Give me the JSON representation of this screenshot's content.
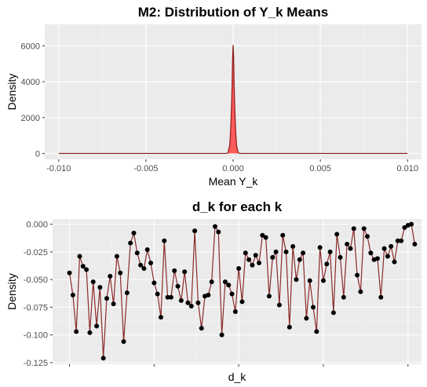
{
  "chart_data": [
    {
      "type": "area",
      "title": "M2: Distribution of Y_k Means",
      "xlabel": "Mean Y_k",
      "ylabel": "Density",
      "xlim": [
        -0.0108,
        0.0108
      ],
      "ylim": [
        -330,
        7200
      ],
      "x_ticks": [
        -0.01,
        -0.005,
        0.0,
        0.005,
        0.01
      ],
      "x_tick_labels": [
        "-0.010",
        "-0.005",
        "0.000",
        "0.005",
        "0.010"
      ],
      "y_ticks": [
        0,
        2000,
        4000,
        6000
      ],
      "y_tick_labels": [
        "0",
        "2000",
        "4000",
        "6000"
      ],
      "x": [
        -0.01,
        -0.0004,
        -0.0003,
        -0.0002,
        -0.00015,
        -0.0001,
        -6e-05,
        -3e-05,
        0.0,
        3e-05,
        6e-05,
        0.0001,
        0.00015,
        0.0002,
        0.0003,
        0.0004,
        0.01
      ],
      "density": [
        0,
        0,
        30,
        420,
        1150,
        2400,
        3800,
        5300,
        6050,
        5300,
        3800,
        2400,
        1150,
        420,
        30,
        0,
        0
      ],
      "colors": {
        "fill": "#ff5c5c",
        "line": "#8b1a1a"
      },
      "grid": true
    },
    {
      "type": "line",
      "title": "d_k for each k",
      "xlabel": "d_k",
      "ylabel": "Density",
      "xlim": [
        -4,
        105
      ],
      "ylim": [
        -0.1265,
        0.0047
      ],
      "x_ticks": [
        1,
        26,
        51,
        76,
        101
      ],
      "y_ticks": [
        0,
        -0.025,
        -0.05,
        -0.075,
        -0.1,
        -0.125
      ],
      "y_tick_labels": [
        "0.000",
        "-0.025",
        "-0.050",
        "-0.075",
        "-0.100",
        "-0.125"
      ],
      "values": [
        -0.044,
        -0.064,
        -0.097,
        -0.029,
        -0.038,
        -0.041,
        -0.098,
        -0.052,
        -0.092,
        -0.057,
        -0.121,
        -0.067,
        -0.047,
        -0.072,
        -0.029,
        -0.044,
        -0.106,
        -0.062,
        -0.017,
        -0.008,
        -0.026,
        -0.037,
        -0.04,
        -0.023,
        -0.035,
        -0.053,
        -0.063,
        -0.084,
        -0.015,
        -0.066,
        -0.066,
        -0.042,
        -0.056,
        -0.069,
        -0.043,
        -0.071,
        -0.074,
        -0.006,
        -0.071,
        -0.094,
        -0.065,
        -0.064,
        -0.052,
        -0.002,
        -0.007,
        -0.1,
        -0.052,
        -0.055,
        -0.063,
        -0.079,
        -0.04,
        -0.07,
        -0.026,
        -0.032,
        -0.037,
        -0.028,
        -0.035,
        -0.01,
        -0.012,
        -0.065,
        -0.03,
        -0.025,
        -0.073,
        -0.01,
        -0.025,
        -0.093,
        -0.02,
        -0.05,
        -0.032,
        -0.026,
        -0.085,
        -0.051,
        -0.075,
        -0.097,
        -0.021,
        -0.051,
        -0.036,
        -0.025,
        -0.08,
        -0.009,
        -0.03,
        -0.066,
        -0.018,
        -0.022,
        -0.004,
        -0.046,
        -0.061,
        -0.004,
        -0.011,
        -0.026,
        -0.032,
        -0.031,
        -0.066,
        -0.022,
        -0.029,
        -0.02,
        -0.034,
        -0.015,
        -0.015,
        -0.003,
        -0.001,
        0.0,
        -0.018
      ],
      "colors": {
        "line": "#8b2a2a",
        "point": "#000000"
      },
      "grid": true
    }
  ]
}
